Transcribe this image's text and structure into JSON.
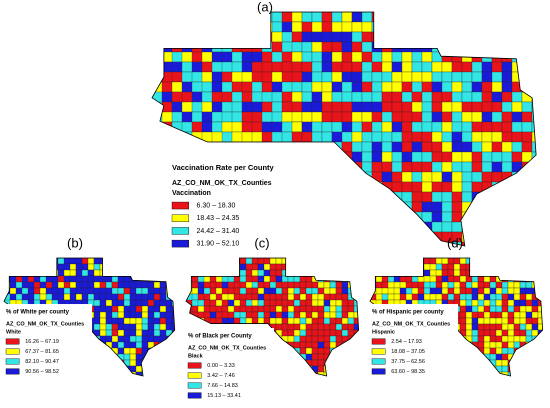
{
  "panels": [
    {
      "label": "(a)",
      "legend": {
        "title": "Vaccination Rate per County",
        "layer": "AZ_CO_NM_OK_TX_Counties",
        "field": "Vaccination",
        "classes": [
          {
            "label": "6.30 – 18.30",
            "color": "#e8141a"
          },
          {
            "label": "18.43 – 24.35",
            "color": "#ffff00"
          },
          {
            "label": "24.42 – 31.40",
            "color": "#33e6e6"
          },
          {
            "label": "31.90 – 52.10",
            "color": "#1a1ad9"
          }
        ]
      }
    },
    {
      "label": "(b)",
      "legend": {
        "title": "% of White per county",
        "layer": "AZ_CO_NM_OK_TX_Counties",
        "field": "White",
        "classes": [
          {
            "label": "16.26 – 67.19",
            "color": "#e8141a"
          },
          {
            "label": "67.37 – 81.65",
            "color": "#ffff00"
          },
          {
            "label": "82.10 – 90.47",
            "color": "#33e6e6"
          },
          {
            "label": "90.56 – 98.52",
            "color": "#1a1ad9"
          }
        ]
      }
    },
    {
      "label": "(c)",
      "legend": {
        "title": "% of Black per County",
        "layer": "AZ_CO_NM_OK_TX_Counties",
        "field": "Black",
        "classes": [
          {
            "label": "0.00 – 3.33",
            "color": "#e8141a"
          },
          {
            "label": "3.42 – 7.46",
            "color": "#ffff00"
          },
          {
            "label": "7.66 – 14.83",
            "color": "#33e6e6"
          },
          {
            "label": "15.13 – 33.41",
            "color": "#1a1ad9"
          }
        ]
      }
    },
    {
      "label": "(d)",
      "legend": {
        "title": "% of Hispanic per county",
        "layer": "AZ_CO_NM_OK_TX_Counties",
        "field": "Hispanic",
        "classes": [
          {
            "label": "2.54 – 17.93",
            "color": "#e8141a"
          },
          {
            "label": "18.08 – 37.05",
            "color": "#ffff00"
          },
          {
            "label": "37.75 – 62.56",
            "color": "#33e6e6"
          },
          {
            "label": "63.60 – 98.35",
            "color": "#1a1ad9"
          }
        ]
      }
    }
  ]
}
